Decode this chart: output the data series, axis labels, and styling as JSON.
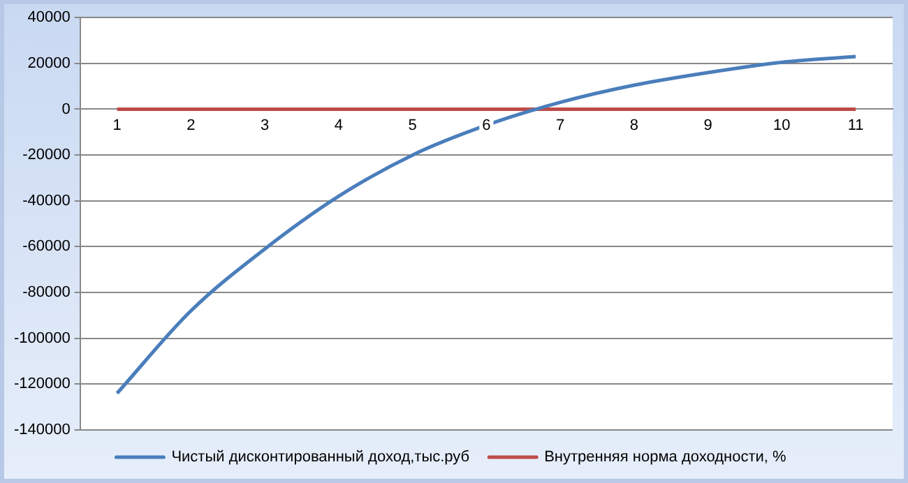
{
  "chart_data": {
    "type": "line",
    "categories": [
      "1",
      "2",
      "3",
      "4",
      "5",
      "6",
      "7",
      "8",
      "9",
      "10",
      "11"
    ],
    "series": [
      {
        "name": "Чистый дисконтированный доход,тыс.руб",
        "color": "#4a7ebb",
        "values": [
          -124000,
          -88000,
          -61000,
          -38000,
          -20000,
          -7000,
          3000,
          10500,
          16000,
          20500,
          23000
        ]
      },
      {
        "name": "Внутренняя норма доходности, %",
        "color": "#be4b48",
        "values": [
          0,
          0,
          0,
          0,
          0,
          0,
          0,
          0,
          0,
          0,
          0
        ]
      }
    ],
    "ylim": [
      -140000,
      40000
    ],
    "yticks": [
      -140000,
      -120000,
      -100000,
      -80000,
      -60000,
      -40000,
      -20000,
      0,
      20000,
      40000
    ],
    "grid": "y",
    "legend": "bottom",
    "marker": "none",
    "line_style": "solid"
  }
}
